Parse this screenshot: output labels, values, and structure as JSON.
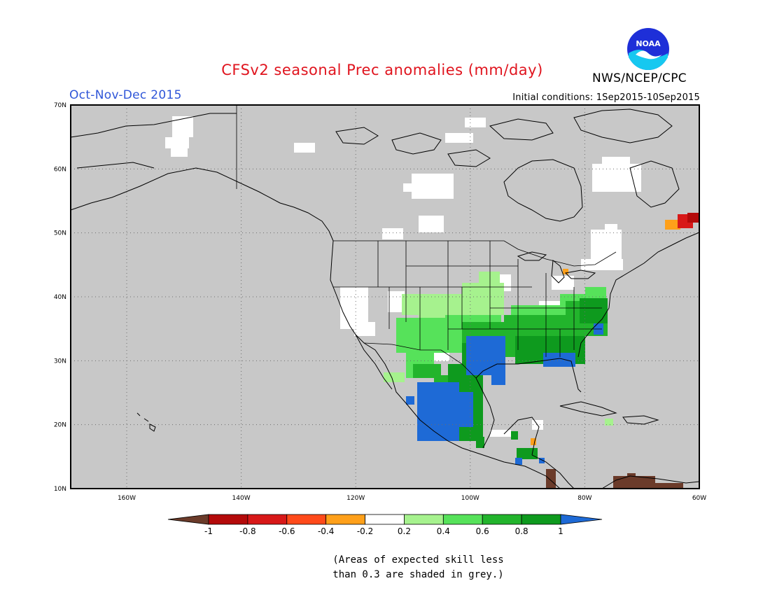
{
  "header": {
    "title": "CFSv2 seasonal Prec anomalies (mm/day)",
    "season": "Oct-Nov-Dec 2015",
    "initial_conditions": "Initial conditions: 1Sep2015-10Sep2015",
    "agency": "NWS/NCEP/CPC",
    "logo_text": "NOAA"
  },
  "colors": {
    "title": "#e0141e",
    "season": "#2f56d8",
    "ocean": "#c8c8c8",
    "border": "#000000"
  },
  "map": {
    "lat_labels": [
      "70N",
      "60N",
      "50N",
      "40N",
      "30N",
      "20N",
      "10N"
    ],
    "lon_labels": [
      "160W",
      "140W",
      "120W",
      "100W",
      "80W",
      "60W"
    ],
    "grid": true
  },
  "colorbar": {
    "labels": [
      "-1",
      "-0.8",
      "-0.6",
      "-0.4",
      "-0.2",
      "0.2",
      "0.4",
      "0.6",
      "0.8",
      "1"
    ],
    "colors": [
      "#6b3b2a",
      "#b40a0a",
      "#d81818",
      "#ff4a1a",
      "#ffa01a",
      "#ffffff",
      "#a6f28e",
      "#56e25a",
      "#22b42c",
      "#0e9a1e",
      "#1e6ad6"
    ]
  },
  "note": {
    "line1": "(Areas of expected skill less",
    "line2": "than 0.3 are shaded in grey.)"
  }
}
